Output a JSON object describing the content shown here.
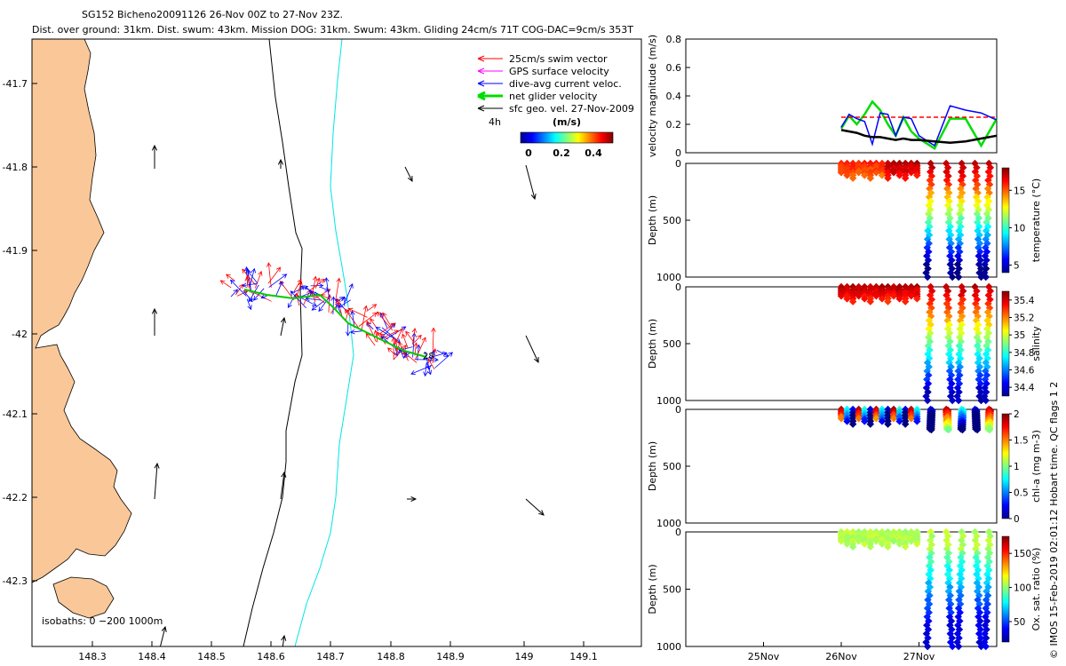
{
  "title_line1": "SG152 Bicheno20091126 26-Nov 00Z to 27-Nov 23Z.",
  "title_line2": "Dist. over ground: 31km. Dist. swum: 43km. Mission DOG: 31km. Swum: 43km. Gliding 24cm/s 71T COG-DAC=9cm/s 353T",
  "side_note": "© IMOS 15-Feb-2019 02:01:12 Hobart time. QC flags 1 2",
  "colors": {
    "land": "#FAC898",
    "swim": "#FF0000",
    "gps": "#FF00FF",
    "dac": "#0000FF",
    "net": "#00DD00",
    "geo": "#000000",
    "isobath200": "#000000",
    "isobath1000": "#00E5E5"
  },
  "map": {
    "lon_ticks": [
      "148.3",
      "148.4",
      "148.5",
      "148.6",
      "148.7",
      "148.8",
      "148.9",
      "149",
      "149.1"
    ],
    "lat_ticks": [
      "-41.7",
      "-41.8",
      "-41.9",
      "-42",
      "-42.1",
      "-42.2",
      "-42.3"
    ],
    "legend": [
      {
        "label": "25cm/s swim vector",
        "color": "swim"
      },
      {
        "label": "GPS surface velocity",
        "color": "gps"
      },
      {
        "label": "dive-avg current veloc.",
        "color": "dac"
      },
      {
        "label": "net glider velocity",
        "color": "net"
      },
      {
        "label": "sfc geo. vel. 27-Nov-2009",
        "color": "geo"
      }
    ],
    "colorbar_label": "(m/s)",
    "colorbar_ticks": [
      "0",
      "0.2",
      "0.4"
    ],
    "label_4h": "4h",
    "dive_label": "28",
    "isobath_label": "isobaths: 0 −200  1000m"
  },
  "chart_data": [
    {
      "type": "line",
      "title": "",
      "ylabel": "velocity magnitude (m/s)",
      "ylim": [
        0,
        0.8
      ],
      "yticks": [
        "0",
        "0.2",
        "0.4",
        "0.6",
        "0.8"
      ],
      "x": [
        26.0,
        26.1,
        26.2,
        26.3,
        26.4,
        26.5,
        26.6,
        26.7,
        26.8,
        26.9,
        27.0,
        27.2,
        27.4,
        27.6,
        27.8,
        28.0
      ],
      "series": [
        {
          "name": "swim",
          "color": "red",
          "values": [
            0.25,
            0.25,
            0.25,
            0.25,
            0.25,
            0.25,
            0.25,
            0.25,
            0.25,
            0.25,
            0.25,
            0.25,
            0.25,
            0.25,
            0.25,
            0.25
          ]
        },
        {
          "name": "dive-avg current",
          "color": "blue",
          "values": [
            0.18,
            0.27,
            0.24,
            0.22,
            0.06,
            0.28,
            0.27,
            0.12,
            0.25,
            0.24,
            0.12,
            0.05,
            0.33,
            0.3,
            0.28,
            0.23
          ]
        },
        {
          "name": "net glider velocity",
          "color": "green",
          "values": [
            0.17,
            0.26,
            0.2,
            0.27,
            0.36,
            0.3,
            0.2,
            0.12,
            0.25,
            0.15,
            0.1,
            0.03,
            0.24,
            0.24,
            0.05,
            0.24
          ]
        },
        {
          "name": "sfc geostrophic",
          "color": "black",
          "values": [
            0.16,
            0.15,
            0.14,
            0.12,
            0.11,
            0.11,
            0.1,
            0.09,
            0.1,
            0.09,
            0.09,
            0.08,
            0.07,
            0.08,
            0.1,
            0.12
          ]
        }
      ]
    },
    {
      "type": "scatter",
      "ylabel": "Depth (m)",
      "yticks": [
        "0",
        "500",
        "1000"
      ],
      "ylim": [
        1000,
        0
      ],
      "cbar_label": "temperature (°C)",
      "cbar_ticks": [
        "5",
        "10",
        "15"
      ],
      "clim": [
        4,
        18
      ]
    },
    {
      "type": "scatter",
      "ylabel": "Depth (m)",
      "yticks": [
        "0",
        "500",
        "1000"
      ],
      "ylim": [
        1000,
        0
      ],
      "cbar_label": "salinity",
      "cbar_ticks": [
        "34.4",
        "34.6",
        "34.8",
        "35",
        "35.2",
        "35.4"
      ],
      "clim": [
        34.3,
        35.5
      ]
    },
    {
      "type": "scatter",
      "ylabel": "Depth (m)",
      "yticks": [
        "0",
        "500",
        "1000"
      ],
      "ylim": [
        1000,
        0
      ],
      "cbar_label": "chl-a (mg m-3)",
      "cbar_ticks": [
        "0",
        "0.5",
        "1",
        "1.5",
        "2"
      ],
      "clim": [
        0,
        2
      ]
    },
    {
      "type": "scatter",
      "ylabel": "Depth (m)",
      "yticks": [
        "0",
        "500",
        "1000"
      ],
      "ylim": [
        1000,
        0
      ],
      "cbar_label": "Ox. sat. ratio (%)",
      "cbar_ticks": [
        "50",
        "100",
        "150"
      ],
      "clim": [
        20,
        175
      ],
      "xticks": [
        "25Nov",
        "26Nov",
        "27Nov"
      ]
    }
  ]
}
